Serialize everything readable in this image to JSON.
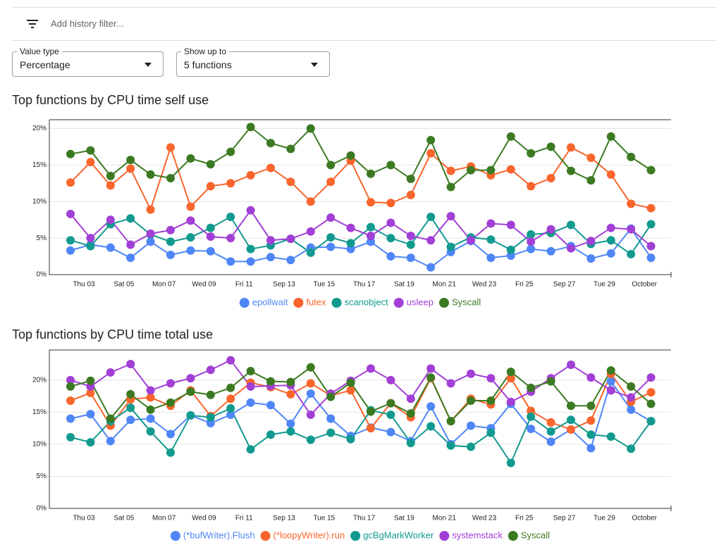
{
  "filter_bar": {
    "placeholder": "Add history filter..."
  },
  "controls": [
    {
      "label": "Value type",
      "value": "Percentage"
    },
    {
      "label": "Show up to",
      "value": "5 functions"
    }
  ],
  "chart_data": [
    {
      "type": "line",
      "title": "Top functions by CPU time self use",
      "categories": [
        null,
        "Thu 03",
        null,
        "Sat 05",
        null,
        "Mon 07",
        null,
        "Wed 09",
        null,
        "Fri 11",
        null,
        "Sep 13",
        null,
        "Tue 15",
        null,
        "Thu 17",
        null,
        "Sat 19",
        null,
        "Mon 21",
        null,
        "Wed 23",
        null,
        "Fri 25",
        null,
        "Sep 27",
        null,
        "Tue 29",
        null,
        "October"
      ],
      "ylim": [
        0,
        21.2
      ],
      "yticks": [
        {
          "value": 0,
          "label": "0%"
        },
        {
          "value": 5,
          "label": "5%"
        },
        {
          "value": 10,
          "label": "10%"
        },
        {
          "value": 15,
          "label": "15%"
        },
        {
          "value": 20,
          "label": "20%"
        }
      ],
      "grid": true,
      "legend": "bottom",
      "series": [
        {
          "name": "epollwait",
          "color": "#4f86f7",
          "values": [
            3.3,
            4.1,
            3.7,
            2.3,
            4.5,
            2.7,
            3.3,
            3.2,
            1.8,
            1.8,
            2.4,
            2,
            3.7,
            3.8,
            3.5,
            4.5,
            2.5,
            2.3,
            1,
            3.1,
            4.6,
            2.3,
            2.6,
            3.5,
            3.2,
            3.9,
            2.2,
            2.9,
            6.3,
            2.3
          ]
        },
        {
          "name": "futex",
          "color": "#f9652c",
          "values": [
            12.6,
            15.4,
            12.2,
            14.5,
            8.9,
            17.4,
            9.3,
            12.1,
            12.5,
            13.6,
            14.6,
            12.7,
            10,
            12.7,
            15.6,
            9.9,
            9.8,
            10.9,
            16.6,
            14.2,
            14.8,
            13.6,
            14.4,
            12.1,
            13.2,
            17.4,
            16,
            13.7,
            9.7,
            9.1
          ]
        },
        {
          "name": "scanobject",
          "color": "#129a8f",
          "values": [
            4.7,
            3.9,
            6.9,
            7.7,
            5.5,
            4.5,
            5.1,
            6.4,
            7.9,
            3.5,
            4,
            4.9,
            3,
            5.1,
            4.3,
            6.5,
            5,
            4.1,
            7.9,
            3.8,
            5.1,
            4.8,
            3.4,
            5.5,
            5.7,
            6.8,
            4.2,
            4.7,
            2.8,
            6.9
          ]
        },
        {
          "name": "usleep",
          "color": "#a23fd6",
          "values": [
            8.3,
            5,
            7.5,
            4.1,
            5.6,
            6.1,
            7.4,
            5.2,
            5,
            8.8,
            4.7,
            4.9,
            5.9,
            7.8,
            6.4,
            5.3,
            7.1,
            5.3,
            4.7,
            8,
            4.7,
            7,
            6.8,
            4.5,
            6.2,
            3.6,
            4.6,
            6.4,
            6.2,
            3.9
          ]
        },
        {
          "name": "Syscall",
          "color": "#3b7a22",
          "values": [
            16.5,
            17,
            13.5,
            15.7,
            13.7,
            13.2,
            15.9,
            15.1,
            16.8,
            20.2,
            18,
            17.2,
            20,
            15,
            16.3,
            13.8,
            15,
            13.1,
            18.4,
            12,
            14.3,
            14.3,
            18.9,
            16.6,
            17.5,
            14.2,
            12.9,
            18.9,
            16.1,
            14.3
          ]
        }
      ]
    },
    {
      "type": "line",
      "title": "Top functions by CPU time total use",
      "categories": [
        null,
        "Thu 03",
        null,
        "Sat 05",
        null,
        "Mon 07",
        null,
        "Wed 09",
        null,
        "Fri 11",
        null,
        "Sep 13",
        null,
        "Tue 15",
        null,
        "Thu 17",
        null,
        "Sat 19",
        null,
        "Mon 21",
        null,
        "Wed 23",
        null,
        "Fri 25",
        null,
        "Sep 27",
        null,
        "Tue 29",
        null,
        "October"
      ],
      "ylim": [
        0,
        24.7
      ],
      "yticks": [
        {
          "value": 0,
          "label": "0%"
        },
        {
          "value": 5,
          "label": "5%"
        },
        {
          "value": 10,
          "label": "10%"
        },
        {
          "value": 15,
          "label": "15%"
        },
        {
          "value": 20,
          "label": "20%"
        }
      ],
      "grid": true,
      "legend": "bottom",
      "series": [
        {
          "name": "(*bufWriter).Flush",
          "color": "#4f86f7",
          "values": [
            14,
            14.7,
            10.5,
            13.8,
            14,
            11.6,
            14.5,
            13.3,
            14.6,
            16.5,
            16.1,
            13.2,
            17.9,
            14,
            11.3,
            12.6,
            11.9,
            10.5,
            15.9,
            10,
            12.9,
            12.5,
            16.3,
            12.4,
            10.4,
            12.3,
            9.4,
            19.8,
            15.4,
            13.6
          ]
        },
        {
          "name": "(*loopyWriter).run",
          "color": "#f9652c",
          "values": [
            16.8,
            18,
            12.9,
            17,
            17.3,
            16,
            18.4,
            14.4,
            17.1,
            19.6,
            18.9,
            17.8,
            19.5,
            17.6,
            18.4,
            12.5,
            16.4,
            14.2,
            20.3,
            13.6,
            17.1,
            16.2,
            20.3,
            15.2,
            13.4,
            12.3,
            13.7,
            21,
            16.6,
            18.1
          ]
        },
        {
          "name": "gcBgMarkWorker",
          "color": "#129a8f",
          "values": [
            11.1,
            10.3,
            13.6,
            15.7,
            12,
            8.7,
            14.5,
            14.2,
            15.6,
            9.2,
            11.5,
            12,
            10.7,
            11.8,
            10.8,
            15.3,
            14.6,
            10.2,
            12.8,
            9.8,
            9.6,
            11.8,
            7.1,
            14.3,
            12,
            13.8,
            11.5,
            11.2,
            9.3,
            13.6
          ]
        },
        {
          "name": "systemstack",
          "color": "#a23fd6",
          "values": [
            20,
            19,
            21.2,
            22.5,
            18.4,
            19.5,
            20.3,
            21.6,
            23.1,
            19,
            19.1,
            19.2,
            14.6,
            17.9,
            19.9,
            21.8,
            20,
            17.1,
            21.8,
            19.5,
            21,
            20.3,
            16.6,
            18.2,
            20.3,
            22.4,
            20.4,
            18.4,
            17.3,
            20.4
          ]
        },
        {
          "name": "Syscall",
          "color": "#3b7a22",
          "values": [
            19,
            19.9,
            14,
            17.8,
            15.4,
            16.5,
            18.2,
            17.7,
            18.8,
            21.4,
            19.8,
            19.7,
            22,
            17.4,
            19.6,
            15.1,
            16.4,
            14.8,
            20.4,
            13.6,
            16.8,
            16.8,
            21.3,
            18.8,
            19.8,
            16,
            16,
            21.5,
            19,
            16.3
          ]
        }
      ]
    }
  ]
}
